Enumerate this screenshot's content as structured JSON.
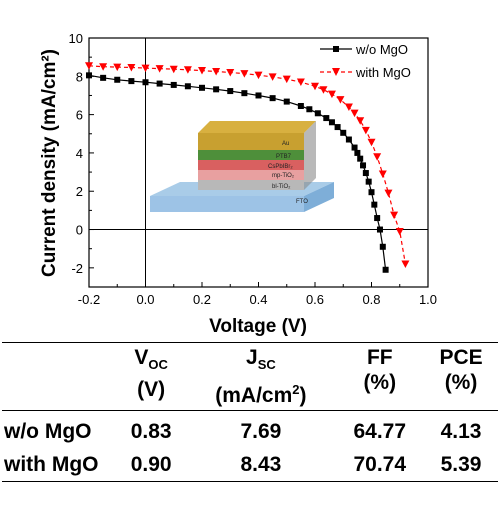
{
  "chart_data": {
    "type": "line",
    "xlabel": "Voltage (V)",
    "ylabel": "Current density (mA/cm²)",
    "xlim": [
      -0.2,
      1.0
    ],
    "ylim": [
      -3,
      10
    ],
    "x_ticks": [
      "-0.2",
      "0.0",
      "0.2",
      "0.4",
      "0.6",
      "0.8",
      "1.0"
    ],
    "y_ticks": [
      "-2",
      "0",
      "2",
      "4",
      "6",
      "8",
      "10"
    ],
    "legend_position": "top-right",
    "series": [
      {
        "name": "w/o MgO",
        "color": "#000000",
        "marker": "square",
        "line_style": "solid",
        "x": [
          -0.2,
          -0.15,
          -0.1,
          -0.05,
          0.0,
          0.05,
          0.1,
          0.15,
          0.2,
          0.25,
          0.3,
          0.35,
          0.4,
          0.45,
          0.5,
          0.55,
          0.58,
          0.61,
          0.64,
          0.66,
          0.68,
          0.7,
          0.72,
          0.74,
          0.75,
          0.76,
          0.77,
          0.78,
          0.79,
          0.8,
          0.81,
          0.82,
          0.83,
          0.84,
          0.85
        ],
        "y": [
          8.05,
          7.92,
          7.82,
          7.75,
          7.69,
          7.62,
          7.55,
          7.48,
          7.4,
          7.32,
          7.23,
          7.12,
          7.0,
          6.86,
          6.68,
          6.45,
          6.28,
          6.07,
          5.82,
          5.6,
          5.35,
          5.05,
          4.7,
          4.28,
          4.0,
          3.7,
          3.35,
          2.95,
          2.5,
          1.95,
          1.3,
          0.6,
          0.0,
          -0.9,
          -2.1
        ]
      },
      {
        "name": "with MgO",
        "color": "#ff0000",
        "marker": "triangle-down",
        "line_style": "dashed",
        "x": [
          -0.2,
          -0.15,
          -0.1,
          -0.05,
          0.0,
          0.05,
          0.1,
          0.15,
          0.2,
          0.25,
          0.3,
          0.35,
          0.4,
          0.45,
          0.5,
          0.55,
          0.6,
          0.63,
          0.66,
          0.69,
          0.72,
          0.74,
          0.76,
          0.78,
          0.8,
          0.82,
          0.84,
          0.86,
          0.88,
          0.9,
          0.92
        ],
        "y": [
          8.55,
          8.5,
          8.48,
          8.46,
          8.43,
          8.4,
          8.37,
          8.34,
          8.3,
          8.25,
          8.2,
          8.14,
          8.06,
          7.97,
          7.85,
          7.7,
          7.48,
          7.3,
          7.07,
          6.78,
          6.4,
          6.08,
          5.68,
          5.18,
          4.56,
          3.8,
          2.9,
          1.9,
          0.75,
          -0.1,
          -1.8
        ]
      }
    ],
    "inset": {
      "layers": [
        "Au",
        "PTB7",
        "CsPbIBr₂",
        "mp-TiO₂",
        "bl-TiO₂",
        "FTO"
      ]
    }
  },
  "table": {
    "headers": [
      {
        "top": "V",
        "sub": "OC",
        "bottom": "(V)"
      },
      {
        "top": "J",
        "sub": "SC",
        "bottom": "(mA/cm",
        "sup": "2",
        "close": ")"
      },
      {
        "top": "FF",
        "sub": "",
        "bottom": "(%)"
      },
      {
        "top": "PCE",
        "sub": "",
        "bottom": "(%)"
      }
    ],
    "rows": [
      {
        "name": "w/o MgO",
        "voc": "0.83",
        "jsc": "7.69",
        "ff": "64.77",
        "pce": "4.13"
      },
      {
        "name": "with MgO",
        "voc": "0.90",
        "jsc": "8.43",
        "ff": "70.74",
        "pce": "5.39"
      }
    ]
  }
}
